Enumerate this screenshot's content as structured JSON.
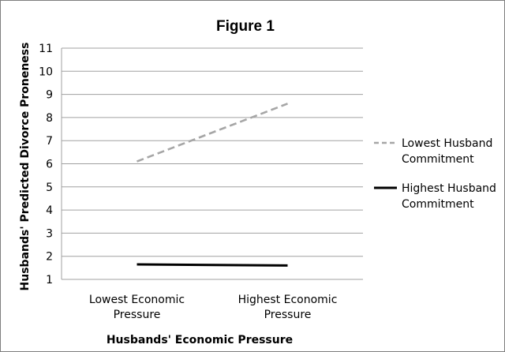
{
  "chart_data": {
    "type": "line",
    "title": "Figure 1",
    "xlabel": "Husbands' Economic Pressure",
    "ylabel": "Husbands' Predicted Divorce Proneness",
    "categories": [
      [
        "Lowest Economic",
        "Pressure"
      ],
      [
        "Highest Economic",
        "Pressure"
      ]
    ],
    "ylim": [
      1,
      11
    ],
    "yticks": [
      "1",
      "2",
      "3",
      "4",
      "5",
      "6",
      "7",
      "8",
      "9",
      "10",
      "11"
    ],
    "grid": true,
    "legend_position": "right",
    "series": [
      {
        "name": [
          "Lowest Husband",
          "Commitment"
        ],
        "values": [
          6.1,
          8.6
        ],
        "color": "#a6a6a6",
        "style": "dashed"
      },
      {
        "name": [
          "Highest Husband",
          "Commitment"
        ],
        "values": [
          1.65,
          1.6
        ],
        "color": "#000000",
        "style": "solid"
      }
    ]
  }
}
